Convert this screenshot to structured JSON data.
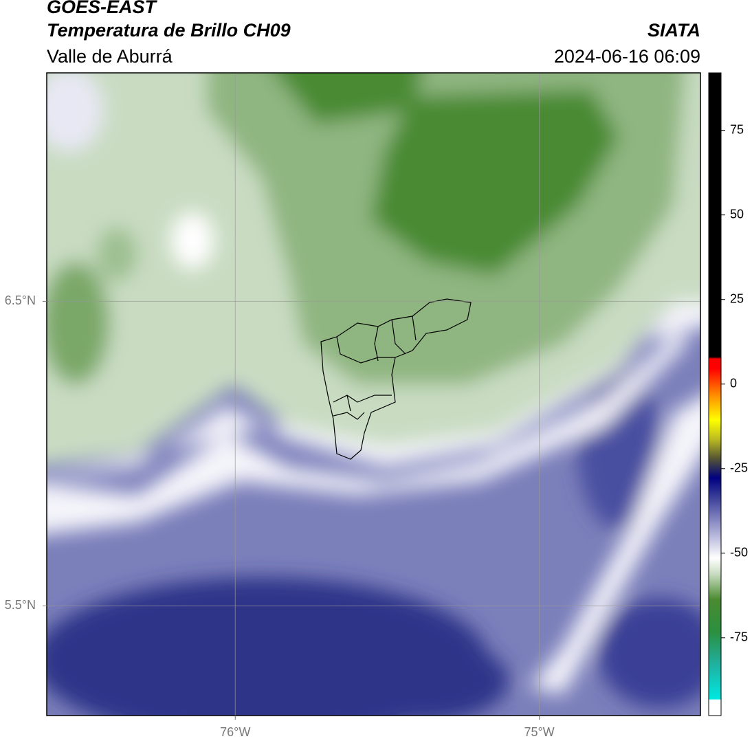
{
  "header": {
    "title": "GOES-EAST",
    "subtitle": "Temperatura de Brillo CH09",
    "source": "SIATA",
    "region": "Valle de Aburrá",
    "datetime": "2024-06-16 06:09"
  },
  "map": {
    "xlim": [
      -76.62,
      -74.47
    ],
    "ylim": [
      5.14,
      7.25
    ],
    "xticks": [
      {
        "value": -76,
        "label": "76°W"
      },
      {
        "value": -75,
        "label": "75°W"
      }
    ],
    "yticks": [
      {
        "value": 6.5,
        "label": "6.5°N"
      },
      {
        "value": 5.5,
        "label": "5.5°N"
      }
    ],
    "grid": true
  },
  "colorbar": {
    "lim": [
      -98,
      92
    ],
    "ticks": [
      75,
      50,
      25,
      0,
      -25,
      -50,
      -75
    ]
  }
}
